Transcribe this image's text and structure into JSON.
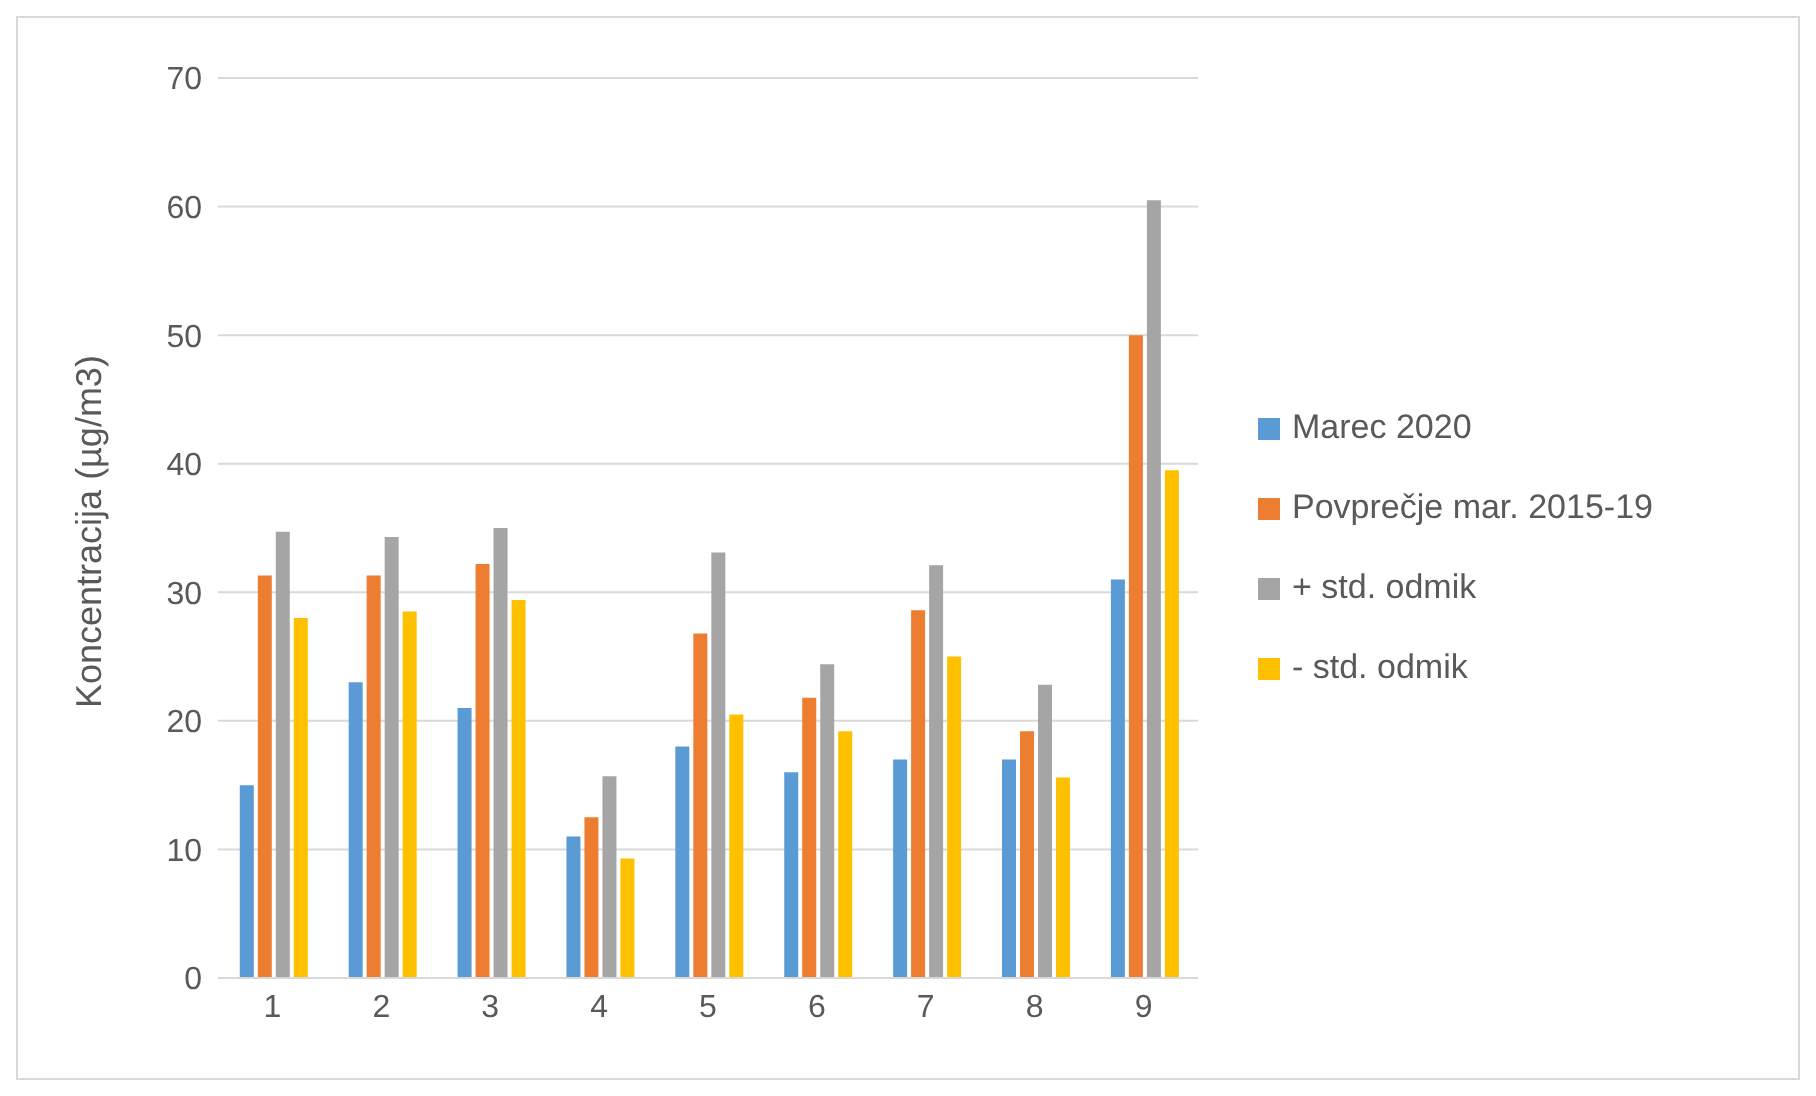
{
  "chart_data": {
    "type": "bar",
    "ylabel": "Koncentracija (µg/m3)",
    "categories": [
      "1",
      "2",
      "3",
      "4",
      "5",
      "6",
      "7",
      "8",
      "9"
    ],
    "series": [
      {
        "name": "Marec 2020",
        "color": "#5b9bd5",
        "values": [
          15,
          23,
          21,
          11,
          18,
          16,
          17,
          17,
          31
        ]
      },
      {
        "name": "Povprečje mar. 2015-19",
        "color": "#ed7d31",
        "values": [
          31.3,
          31.3,
          32.2,
          12.5,
          26.8,
          21.8,
          28.6,
          19.2,
          50
        ]
      },
      {
        "name": "+ std. odmik",
        "color": "#a5a5a5",
        "values": [
          34.7,
          34.3,
          35,
          15.7,
          33.1,
          24.4,
          32.1,
          22.8,
          60.5
        ]
      },
      {
        "name": "- std. odmik",
        "color": "#ffc000",
        "values": [
          28,
          28.5,
          29.4,
          9.3,
          20.5,
          19.2,
          25,
          15.6,
          39.5
        ]
      }
    ],
    "ylim": [
      0,
      70
    ],
    "yticks": [
      0,
      10,
      20,
      30,
      40,
      50,
      60,
      70
    ],
    "grid": "y",
    "legend": "right"
  }
}
